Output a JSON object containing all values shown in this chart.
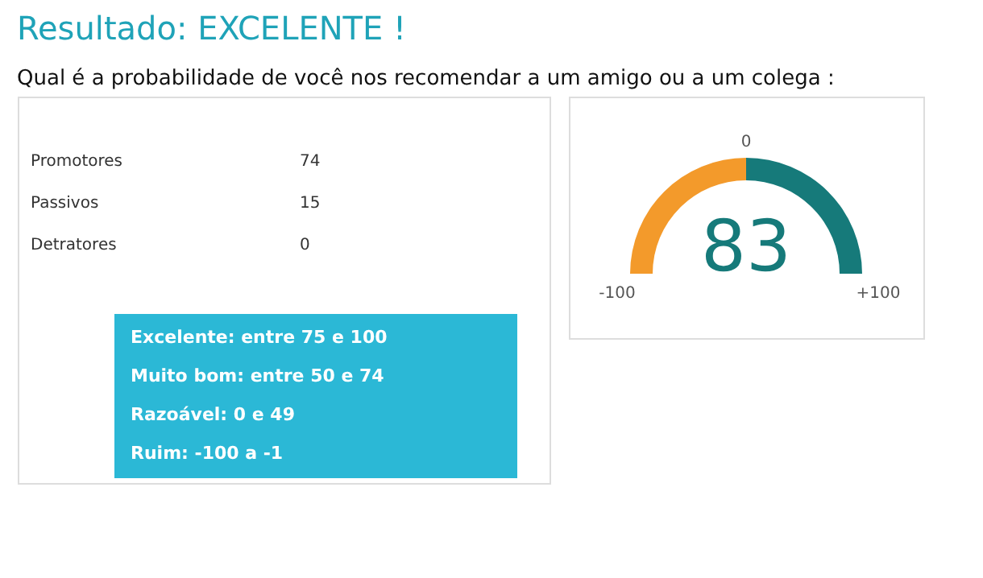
{
  "chart_data": [
    {
      "type": "other",
      "title": "Resultado: EXCELENTE !",
      "subtitle": "Qual é a probabilidade de você nos recomendar a um amigo ou a um colega :",
      "categories": [
        "Promotores",
        "Passivos",
        "Detratores"
      ],
      "values": [
        74,
        15,
        0
      ],
      "data_labels": true,
      "annotations": [
        "Excelente: entre 75 e 100",
        "Muito bom: entre 50 e 74",
        "Razoável: 0 e 49",
        "Ruim: -100 a -1"
      ]
    },
    {
      "type": "donut",
      "categories": [
        null,
        null
      ],
      "values": [
        50,
        50
      ],
      "colors": [
        "#f39a2b",
        "#167a7a"
      ],
      "annotations": [
        "-100",
        "0",
        "+100",
        "83"
      ]
    }
  ]
}
